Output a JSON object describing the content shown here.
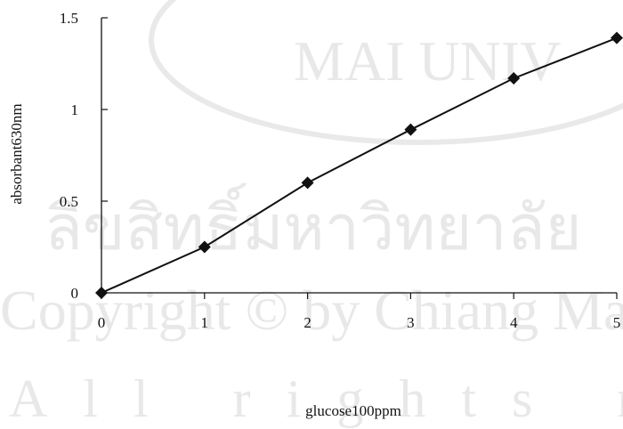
{
  "watermark": {
    "top": "MAI UNIV",
    "thai": "ลิขสิทธิ์มหาวิทยาลัย",
    "copyright": "Copyright © by Chiang Mai",
    "rights": "All rights reserved"
  },
  "chart_data": {
    "type": "line",
    "title": "",
    "xlabel": "glucose100ppm",
    "ylabel": "absorbant630nm",
    "xlim": [
      0,
      5
    ],
    "ylim": [
      0,
      1.5
    ],
    "x_ticks": [
      0,
      1,
      2,
      3,
      4,
      5
    ],
    "y_ticks": [
      0,
      0.5,
      1,
      1.5
    ],
    "x_tick_labels": [
      "0",
      "1",
      "2",
      "3",
      "4",
      "5"
    ],
    "y_tick_labels": [
      "0",
      "0.5",
      "1",
      "1.5"
    ],
    "grid": false,
    "marker": "diamond",
    "series": [
      {
        "x": [
          0,
          1,
          2,
          3,
          4,
          5
        ],
        "values": [
          0,
          0.25,
          0.6,
          0.89,
          1.17,
          1.39
        ]
      }
    ]
  }
}
